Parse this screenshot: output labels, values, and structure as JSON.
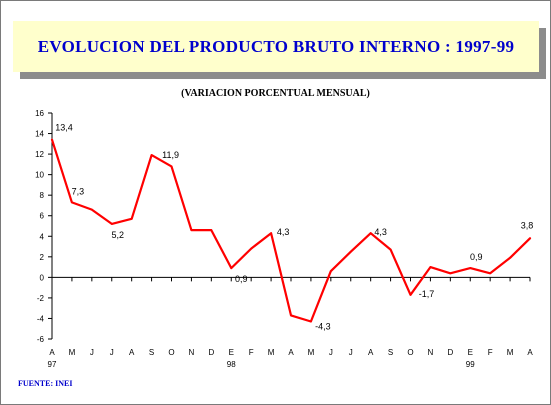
{
  "title": "EVOLUCION DEL PRODUCTO BRUTO INTERNO : 1997-99",
  "subtitle": "(VARIACION PORCENTUAL MENSUAL)",
  "source": "FUENTE: INEI",
  "colors": {
    "title_text": "#0000cc",
    "title_bg": "#ffffcc",
    "series": "#ff0000",
    "source_text": "#0000cc"
  },
  "chart_data": {
    "type": "line",
    "title": "EVOLUCION DEL PRODUCTO BRUTO INTERNO : 1997-99",
    "subtitle": "(VARIACION PORCENTUAL MENSUAL)",
    "xlabel": "",
    "ylabel": "",
    "ylim": [
      -6,
      16
    ],
    "yticks": [
      16,
      14,
      12,
      10,
      8,
      6,
      4,
      2,
      0,
      -2,
      -4,
      -6
    ],
    "grid": false,
    "categories": [
      "A",
      "M",
      "J",
      "J",
      "A",
      "S",
      "O",
      "N",
      "D",
      "E",
      "F",
      "M",
      "A",
      "M",
      "J",
      "J",
      "A",
      "S",
      "O",
      "N",
      "D",
      "E",
      "F",
      "M",
      "A"
    ],
    "year_labels": [
      {
        "index": 0,
        "label": "97"
      },
      {
        "index": 9,
        "label": "98"
      },
      {
        "index": 21,
        "label": "99"
      }
    ],
    "values": [
      13.4,
      7.3,
      6.6,
      5.2,
      5.7,
      11.9,
      10.8,
      4.6,
      4.6,
      0.9,
      2.8,
      4.3,
      -3.7,
      -4.3,
      0.6,
      2.5,
      4.3,
      2.7,
      -1.7,
      1.0,
      0.4,
      0.9,
      0.4,
      1.9,
      3.8
    ],
    "data_labels": [
      {
        "index": 0,
        "text": "13,4"
      },
      {
        "index": 1,
        "text": "7,3"
      },
      {
        "index": 3,
        "text": "5,2"
      },
      {
        "index": 5,
        "text": "11,9"
      },
      {
        "index": 9,
        "text": "0,9"
      },
      {
        "index": 11,
        "text": "4,3"
      },
      {
        "index": 13,
        "text": "-4,3"
      },
      {
        "index": 16,
        "text": "4,3"
      },
      {
        "index": 18,
        "text": "-1,7"
      },
      {
        "index": 21,
        "text": "0,9"
      },
      {
        "index": 24,
        "text": "3,8"
      }
    ]
  }
}
